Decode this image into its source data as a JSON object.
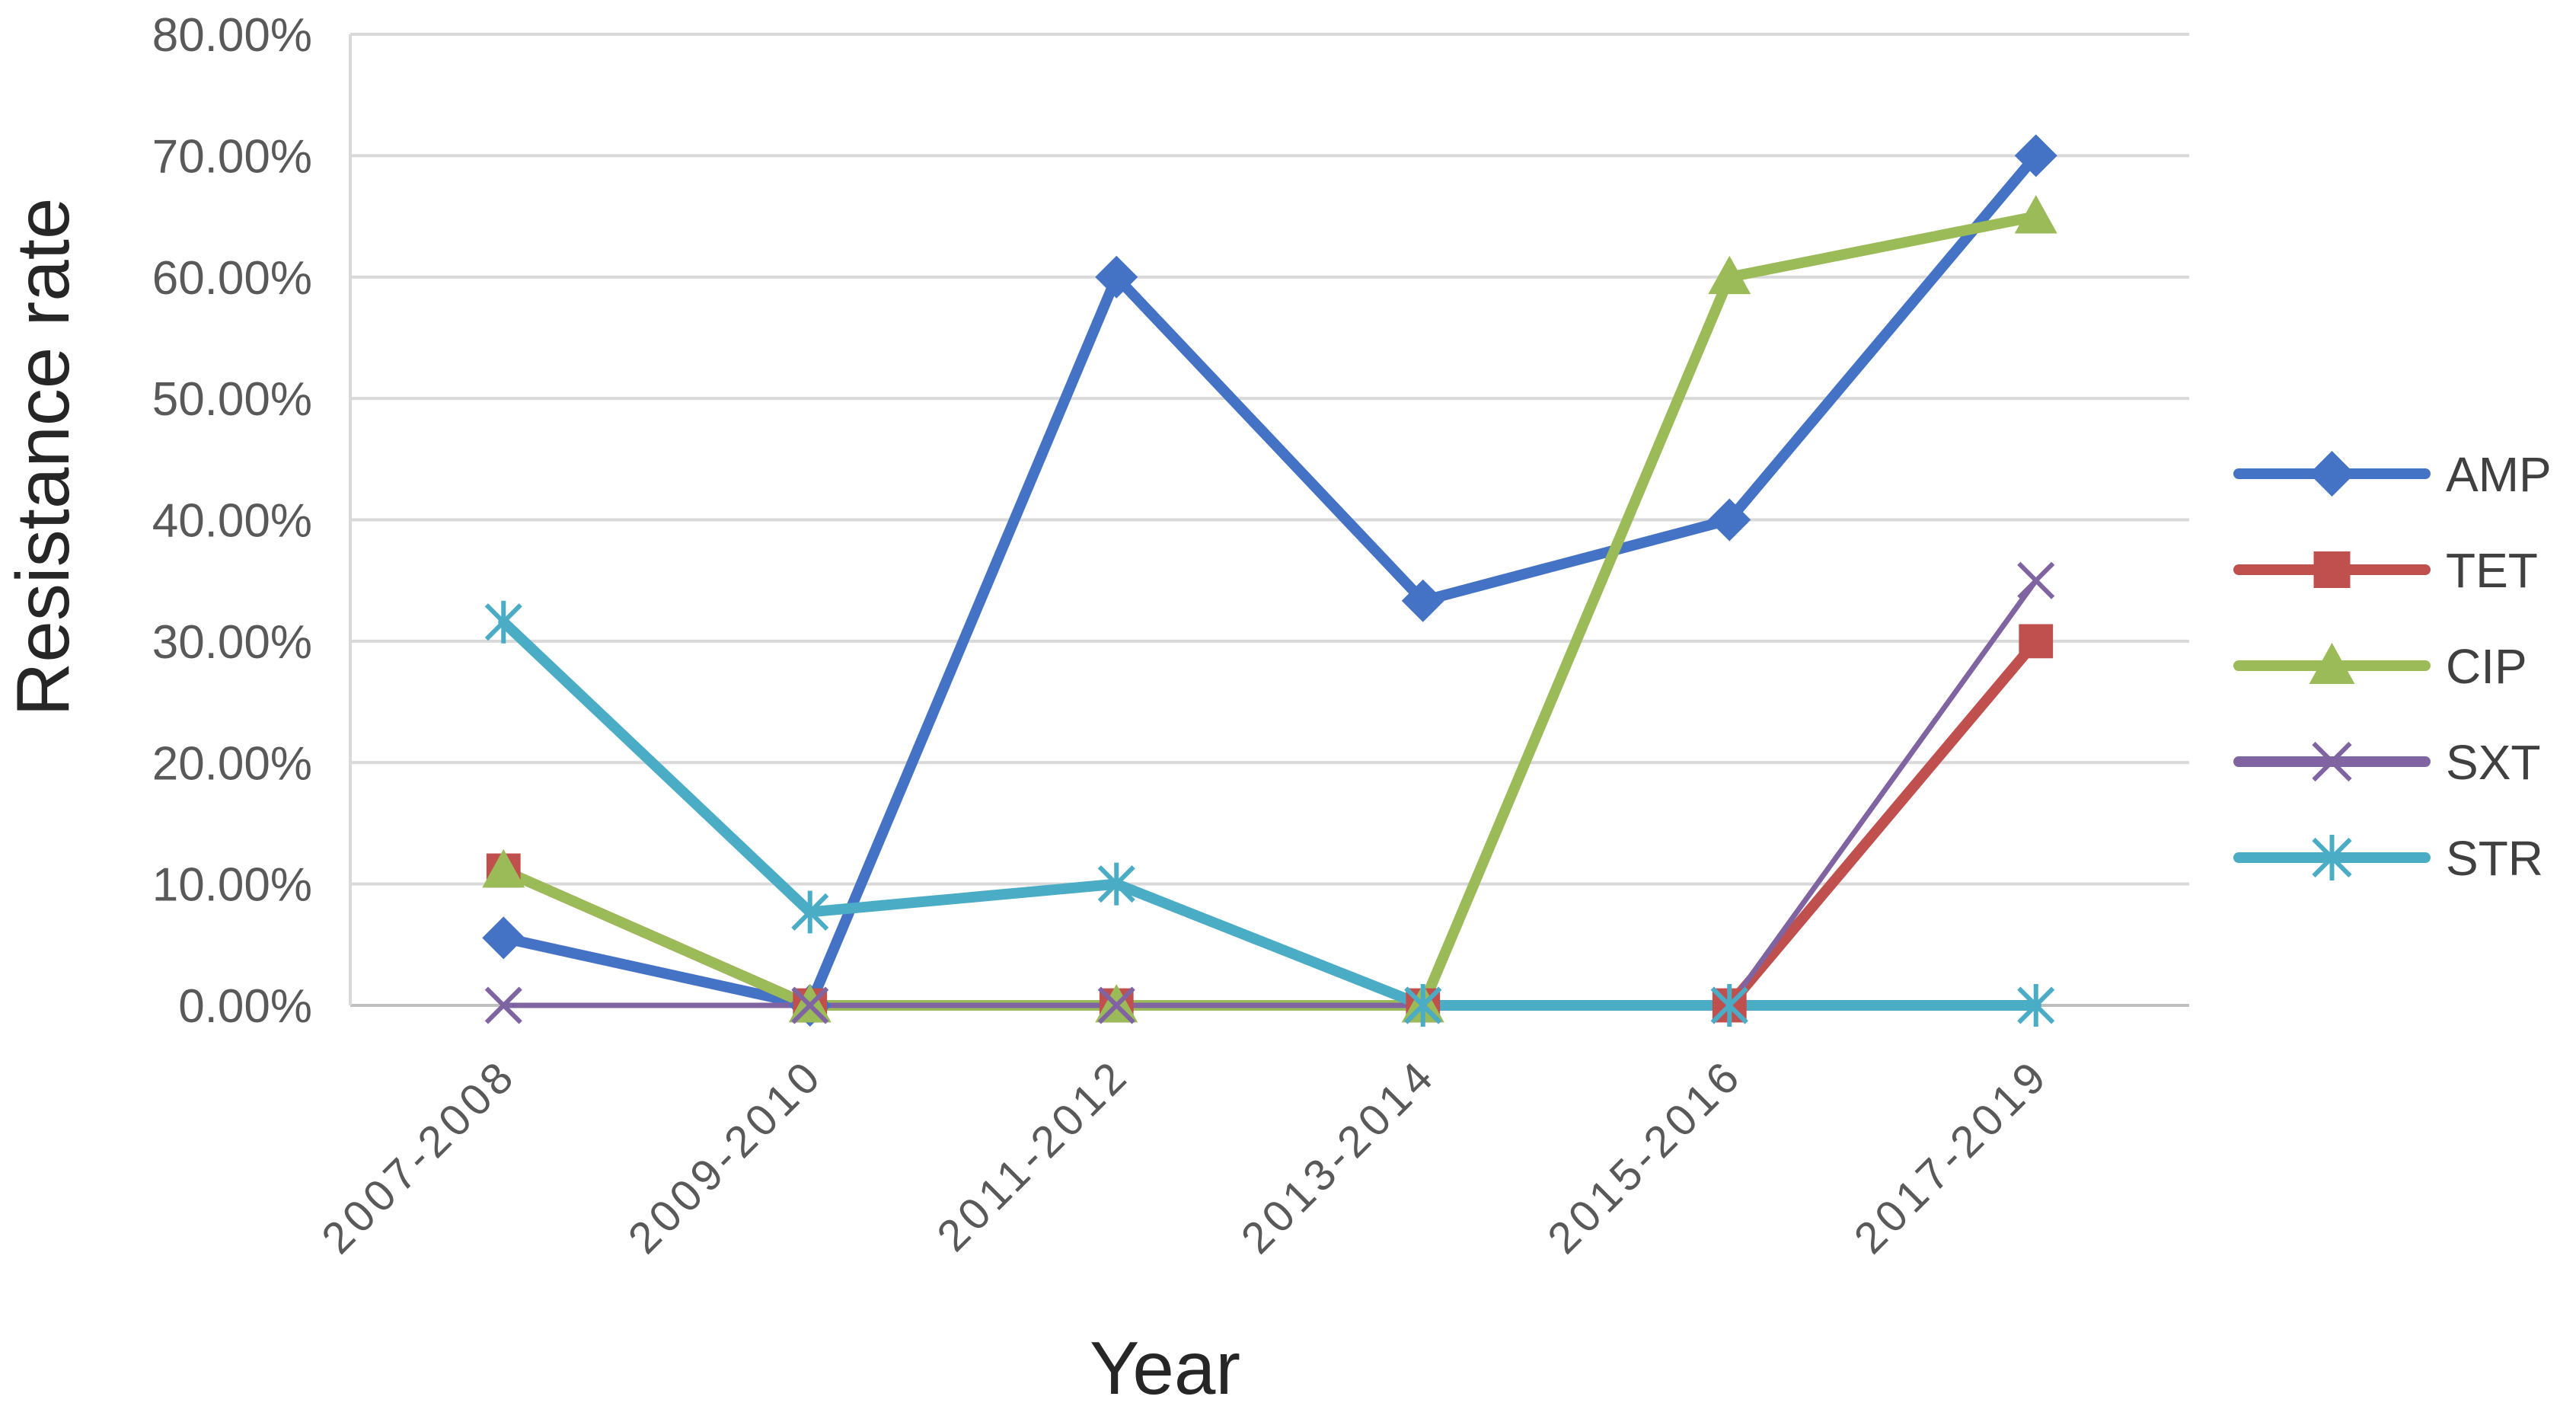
{
  "chart_data": {
    "type": "line",
    "title": "",
    "xlabel": "Year",
    "ylabel": "Resistance rate",
    "categories": [
      "2007-2008",
      "2009-2010",
      "2011-2012",
      "2013-2014",
      "2015-2016",
      "2017-2019"
    ],
    "ylim": [
      0,
      0.8
    ],
    "yticks": [
      "0.00%",
      "10.00%",
      "20.00%",
      "30.00%",
      "40.00%",
      "50.00%",
      "60.00%",
      "70.00%",
      "80.00%"
    ],
    "grid": true,
    "legend_position": "right",
    "series": [
      {
        "name": "AMP",
        "color": "#4472C4",
        "marker": "diamond",
        "values": [
          0.0556,
          0.0,
          0.6,
          0.3333,
          0.4,
          0.7
        ]
      },
      {
        "name": "TET",
        "color": "#C0504D",
        "marker": "square",
        "values": [
          0.1111,
          0.0,
          0.0,
          0.0,
          0.0,
          0.3
        ]
      },
      {
        "name": "CIP",
        "color": "#9BBB59",
        "marker": "triangle",
        "values": [
          0.1111,
          0.0,
          0.0,
          0.0,
          0.6,
          0.65
        ]
      },
      {
        "name": "SXT",
        "color": "#8064A2",
        "marker": "x",
        "values": [
          0.0,
          0.0,
          0.0,
          0.0,
          0.0,
          0.35
        ]
      },
      {
        "name": "STR",
        "color": "#4BACC6",
        "marker": "star",
        "values": [
          0.3158,
          0.0769,
          0.1,
          0.0,
          0.0,
          0.0
        ]
      }
    ]
  }
}
